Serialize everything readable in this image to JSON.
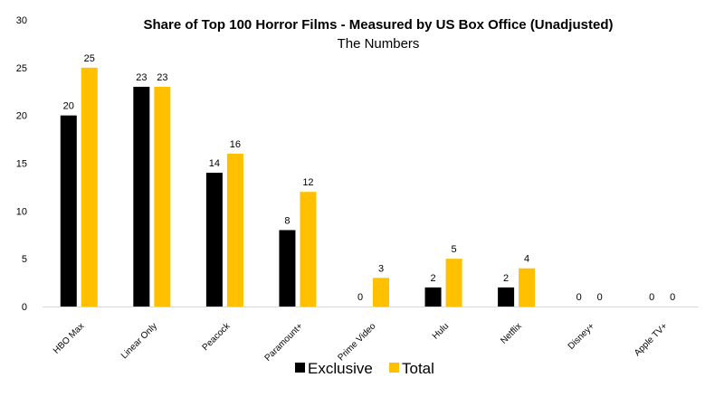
{
  "chart_data": {
    "type": "bar",
    "title": "Share of Top 100 Horror Films - Measured by US Box Office (Unadjusted)",
    "subtitle": "The Numbers",
    "categories": [
      "HBO Max",
      "Linear Only",
      "Peacock",
      "Paramount+",
      "Prime Video",
      "Hulu",
      "Netflix",
      "Disney+",
      "Apple TV+"
    ],
    "series": [
      {
        "name": "Exclusive",
        "color": "#000000",
        "values": [
          20,
          23,
          14,
          8,
          0,
          2,
          2,
          0,
          0
        ]
      },
      {
        "name": "Total",
        "color": "#FFC000",
        "values": [
          25,
          23,
          16,
          12,
          3,
          5,
          4,
          0,
          0
        ]
      }
    ],
    "ylim": [
      0,
      30
    ],
    "yticks": [
      0,
      5,
      10,
      15,
      20,
      25,
      30
    ],
    "grid": false,
    "legend_position": "bottom"
  }
}
